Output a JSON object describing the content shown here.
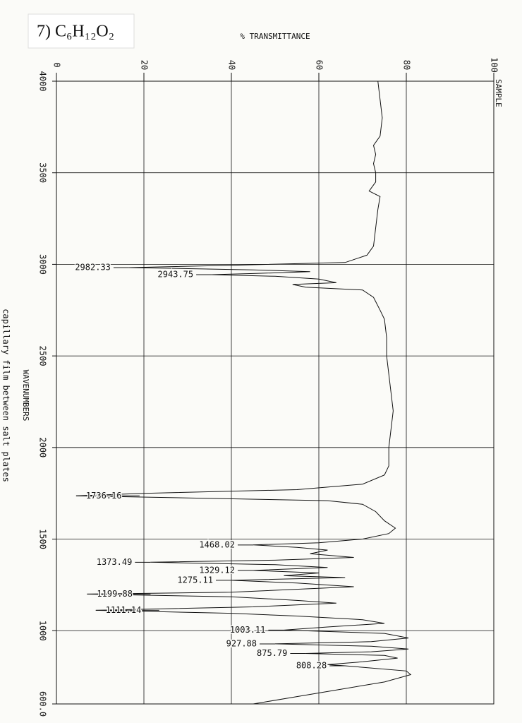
{
  "chart_data": {
    "type": "line",
    "label": "7) C₆H₁₂O₂",
    "title": "% TRANSMITTANCE",
    "series_label": "SAMPLE",
    "xlabel": "WAVENUMBERS",
    "note": "capillary film between salt plates",
    "color": "#111111",
    "grid": true,
    "xlim": [
      4000,
      600
    ],
    "ylim": [
      0,
      100
    ],
    "xticks": [
      4000,
      3500,
      3000,
      2500,
      2000,
      1500,
      1000,
      {
        "value": 600,
        "label": "600.0"
      }
    ],
    "yticks": [
      0,
      20,
      40,
      60,
      80,
      100
    ],
    "x": [
      4000,
      3900,
      3800,
      3700,
      3650,
      3600,
      3550,
      3500,
      3450,
      3400,
      3370,
      3300,
      3200,
      3100,
      3050,
      3010,
      2995,
      2982.33,
      2970,
      2960,
      2950,
      2943.75,
      2935,
      2920,
      2900,
      2890,
      2875,
      2860,
      2820,
      2750,
      2700,
      2600,
      2500,
      2400,
      2300,
      2200,
      2100,
      2000,
      1900,
      1850,
      1800,
      1770,
      1750,
      1736.16,
      1725,
      1710,
      1690,
      1650,
      1600,
      1560,
      1530,
      1500,
      1480,
      1468.02,
      1455,
      1440,
      1420,
      1400,
      1385,
      1373.49,
      1360,
      1345,
      1329.12,
      1315,
      1300,
      1290,
      1275.11,
      1260,
      1240,
      1210,
      1199.88,
      1185,
      1165,
      1150,
      1130,
      1111.14,
      1095,
      1080,
      1060,
      1040,
      1020,
      1003.11,
      985,
      960,
      940,
      927.88,
      915,
      900,
      885,
      875.79,
      865,
      850,
      830,
      815,
      808.28,
      800,
      780,
      760,
      720,
      680,
      640,
      600
    ],
    "values": [
      73.5,
      74,
      74.5,
      74,
      72.5,
      73,
      72.5,
      73,
      73,
      71.5,
      74,
      73.5,
      73,
      72.5,
      71,
      66,
      40,
      16.6,
      45,
      58,
      45,
      35.5,
      50,
      60,
      64,
      54,
      57,
      70,
      72.5,
      74,
      75,
      75.5,
      75.5,
      76,
      76.5,
      77,
      76.5,
      76,
      76,
      75,
      70,
      55,
      20,
      4.5,
      30,
      62,
      70,
      73,
      75,
      77.5,
      76,
      70,
      60,
      45,
      55,
      62,
      58,
      68,
      50,
      21.5,
      50,
      62,
      45,
      60,
      52,
      66,
      40,
      55,
      68,
      40,
      7,
      40,
      55,
      64,
      45,
      9,
      40,
      55,
      70,
      75,
      62,
      52,
      75,
      80.5,
      72,
      50,
      72,
      80.5,
      72,
      57,
      75,
      78,
      70,
      62,
      66,
      70,
      80,
      81,
      75,
      65,
      55,
      45
    ],
    "annotations": [
      {
        "label": "2982.33",
        "x": 2982.33,
        "y": 16.6
      },
      {
        "label": "2943.75",
        "x": 2943.75,
        "y": 35.5
      },
      {
        "label": "1736.16",
        "x": 1736.16,
        "y": 4.5
      },
      {
        "label": "1468.02",
        "x": 1468.02,
        "y": 45
      },
      {
        "label": "1373.49",
        "x": 1373.49,
        "y": 21.5
      },
      {
        "label": "1329.12",
        "x": 1329.12,
        "y": 45
      },
      {
        "label": "1275.11",
        "x": 1275.11,
        "y": 40
      },
      {
        "label": "1199.88",
        "x": 1199.88,
        "y": 7
      },
      {
        "label": "1111.14",
        "x": 1111.14,
        "y": 9
      },
      {
        "label": "1003.11",
        "x": 1003.11,
        "y": 52
      },
      {
        "label": "927.88",
        "x": 927.88,
        "y": 50
      },
      {
        "label": "875.79",
        "x": 875.79,
        "y": 57
      },
      {
        "label": "808.28",
        "x": 808.28,
        "y": 66
      }
    ]
  }
}
